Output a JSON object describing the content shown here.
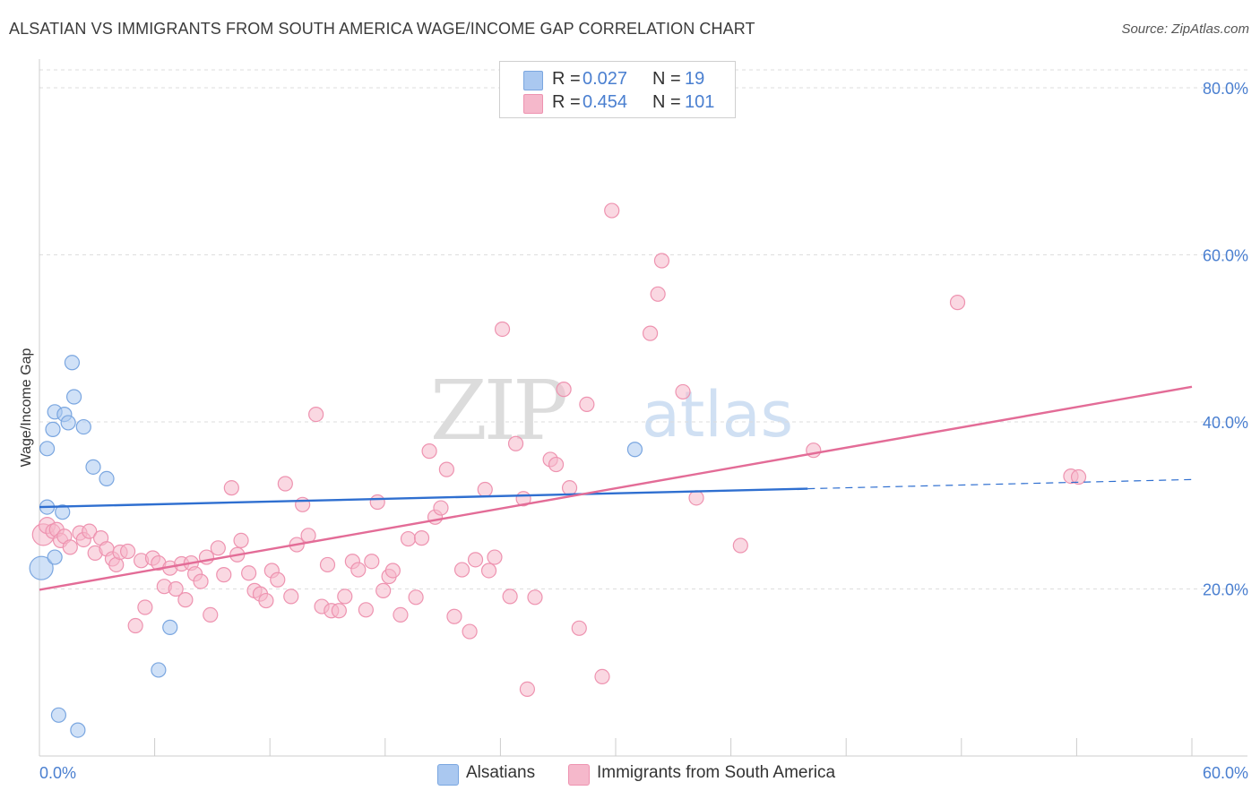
{
  "header": {
    "title": "ALSATIAN VS IMMIGRANTS FROM SOUTH AMERICA WAGE/INCOME GAP CORRELATION CHART",
    "source": "Source: ZipAtlas.com"
  },
  "legend": {
    "rows": [
      {
        "r_label": "R =",
        "r_value": "0.027",
        "n_label": "N =",
        "n_value": "19",
        "color": "#aac8f0"
      },
      {
        "r_label": "R =",
        "r_value": "0.454",
        "n_label": "N =",
        "n_value": "101",
        "color": "#f5b8cb"
      }
    ]
  },
  "bottom_legend": [
    {
      "label": "Alsatians",
      "color": "#aac8f0"
    },
    {
      "label": "Immigrants from South America",
      "color": "#f5b8cb"
    }
  ],
  "watermark": {
    "zip": "ZIP",
    "atlas": "atlas"
  },
  "chart_data": {
    "type": "scatter",
    "title": "ALSATIAN VS IMMIGRANTS FROM SOUTH AMERICA WAGE/INCOME GAP CORRELATION CHART",
    "xlabel": "",
    "ylabel": "Wage/Income Gap",
    "xlim": [
      0,
      60
    ],
    "ylim": [
      0,
      83
    ],
    "x_tick_labels": [
      "0.0%",
      "60.0%"
    ],
    "y_ticks": [
      20,
      40,
      60,
      80
    ],
    "y_tick_labels": [
      "20.0%",
      "40.0%",
      "60.0%",
      "80.0%"
    ],
    "grid": true,
    "legend_position": "top-center",
    "series": [
      {
        "name": "Alsatians",
        "color": "#aac8f0",
        "stroke": "#7aa6e0",
        "trend": {
          "x": [
            0,
            40
          ],
          "y": [
            29.8,
            32.0
          ],
          "dashed_to": [
            60,
            33.1
          ],
          "color": "#2f6fd0"
        },
        "points": [
          [
            0.1,
            22.5,
            13
          ],
          [
            0.4,
            29.8,
            8
          ],
          [
            0.4,
            36.8,
            8
          ],
          [
            0.7,
            39.1,
            8
          ],
          [
            0.8,
            23.8,
            8
          ],
          [
            0.8,
            41.2,
            8
          ],
          [
            1.0,
            4.9,
            8
          ],
          [
            1.2,
            29.2,
            8
          ],
          [
            1.3,
            40.9,
            8
          ],
          [
            1.5,
            39.9,
            8
          ],
          [
            1.7,
            47.1,
            8
          ],
          [
            1.8,
            43.0,
            8
          ],
          [
            2.0,
            3.1,
            8
          ],
          [
            2.3,
            39.4,
            8
          ],
          [
            2.8,
            34.6,
            8
          ],
          [
            3.5,
            33.2,
            8
          ],
          [
            6.2,
            10.3,
            8
          ],
          [
            6.8,
            15.4,
            8
          ],
          [
            31.0,
            36.7,
            8
          ]
        ]
      },
      {
        "name": "Immigrants from South America",
        "color": "#f5b8cb",
        "stroke": "#ee93b0",
        "trend": {
          "x": [
            0,
            60
          ],
          "y": [
            19.9,
            44.2
          ],
          "color": "#e36c97"
        },
        "points": [
          [
            0.2,
            26.5,
            12
          ],
          [
            0.4,
            27.6,
            9
          ],
          [
            0.7,
            26.9,
            8
          ],
          [
            0.9,
            27.1,
            8
          ],
          [
            1.1,
            25.8,
            8
          ],
          [
            1.3,
            26.3,
            8
          ],
          [
            1.6,
            25.0,
            8
          ],
          [
            2.1,
            26.7,
            8
          ],
          [
            2.3,
            25.9,
            8
          ],
          [
            2.6,
            26.9,
            8
          ],
          [
            2.9,
            24.3,
            8
          ],
          [
            3.2,
            26.1,
            8
          ],
          [
            3.5,
            24.8,
            8
          ],
          [
            3.8,
            23.6,
            8
          ],
          [
            4.0,
            22.9,
            8
          ],
          [
            4.2,
            24.4,
            8
          ],
          [
            4.6,
            24.5,
            8
          ],
          [
            5.0,
            15.6,
            8
          ],
          [
            5.3,
            23.4,
            8
          ],
          [
            5.5,
            17.8,
            8
          ],
          [
            5.9,
            23.7,
            8
          ],
          [
            6.2,
            23.1,
            8
          ],
          [
            6.5,
            20.3,
            8
          ],
          [
            6.8,
            22.5,
            8
          ],
          [
            7.1,
            20.0,
            8
          ],
          [
            7.4,
            23.0,
            8
          ],
          [
            7.6,
            18.7,
            8
          ],
          [
            7.9,
            23.1,
            8
          ],
          [
            8.1,
            21.8,
            8
          ],
          [
            8.4,
            20.9,
            8
          ],
          [
            8.7,
            23.8,
            8
          ],
          [
            8.9,
            16.9,
            8
          ],
          [
            9.3,
            24.9,
            8
          ],
          [
            9.6,
            21.7,
            8
          ],
          [
            10.0,
            32.1,
            8
          ],
          [
            10.3,
            24.1,
            8
          ],
          [
            10.5,
            25.8,
            8
          ],
          [
            10.9,
            21.9,
            8
          ],
          [
            11.2,
            19.8,
            8
          ],
          [
            11.5,
            19.4,
            8
          ],
          [
            11.8,
            18.6,
            8
          ],
          [
            12.1,
            22.2,
            8
          ],
          [
            12.4,
            21.1,
            8
          ],
          [
            12.8,
            32.6,
            8
          ],
          [
            13.1,
            19.1,
            8
          ],
          [
            13.4,
            25.3,
            8
          ],
          [
            13.7,
            30.1,
            8
          ],
          [
            14.0,
            26.4,
            8
          ],
          [
            14.4,
            40.9,
            8
          ],
          [
            14.7,
            17.9,
            8
          ],
          [
            15.0,
            22.9,
            8
          ],
          [
            15.2,
            17.4,
            8
          ],
          [
            15.6,
            17.4,
            8
          ],
          [
            15.9,
            19.1,
            8
          ],
          [
            16.3,
            23.3,
            8
          ],
          [
            16.6,
            22.3,
            8
          ],
          [
            17.0,
            17.5,
            8
          ],
          [
            17.3,
            23.3,
            8
          ],
          [
            17.6,
            30.4,
            8
          ],
          [
            17.9,
            19.8,
            8
          ],
          [
            18.2,
            21.5,
            8
          ],
          [
            18.4,
            22.2,
            8
          ],
          [
            18.8,
            16.9,
            8
          ],
          [
            19.2,
            26.0,
            8
          ],
          [
            19.6,
            19.0,
            8
          ],
          [
            19.9,
            26.1,
            8
          ],
          [
            20.3,
            36.5,
            8
          ],
          [
            20.6,
            28.6,
            8
          ],
          [
            20.9,
            29.7,
            8
          ],
          [
            21.2,
            34.3,
            8
          ],
          [
            21.6,
            16.7,
            8
          ],
          [
            22.0,
            22.3,
            8
          ],
          [
            22.4,
            14.9,
            8
          ],
          [
            22.7,
            23.5,
            8
          ],
          [
            23.2,
            31.9,
            8
          ],
          [
            23.4,
            22.2,
            8
          ],
          [
            23.7,
            23.8,
            8
          ],
          [
            24.1,
            51.1,
            8
          ],
          [
            24.5,
            19.1,
            8
          ],
          [
            24.8,
            37.4,
            8
          ],
          [
            25.2,
            30.8,
            8
          ],
          [
            25.4,
            8.0,
            8
          ],
          [
            25.8,
            19.0,
            8
          ],
          [
            26.6,
            35.5,
            8
          ],
          [
            26.9,
            34.9,
            8
          ],
          [
            27.3,
            43.9,
            8
          ],
          [
            27.6,
            32.1,
            8
          ],
          [
            28.1,
            15.3,
            8
          ],
          [
            28.5,
            42.1,
            8
          ],
          [
            29.3,
            9.5,
            8
          ],
          [
            29.8,
            65.3,
            8
          ],
          [
            31.8,
            50.6,
            8
          ],
          [
            32.2,
            55.3,
            8
          ],
          [
            32.4,
            59.3,
            8
          ],
          [
            33.5,
            43.6,
            8
          ],
          [
            34.2,
            30.9,
            8
          ],
          [
            36.5,
            25.2,
            8
          ],
          [
            40.3,
            36.6,
            8
          ],
          [
            47.8,
            54.3,
            8
          ],
          [
            53.7,
            33.5,
            8
          ],
          [
            54.1,
            33.4,
            8
          ]
        ]
      }
    ]
  }
}
